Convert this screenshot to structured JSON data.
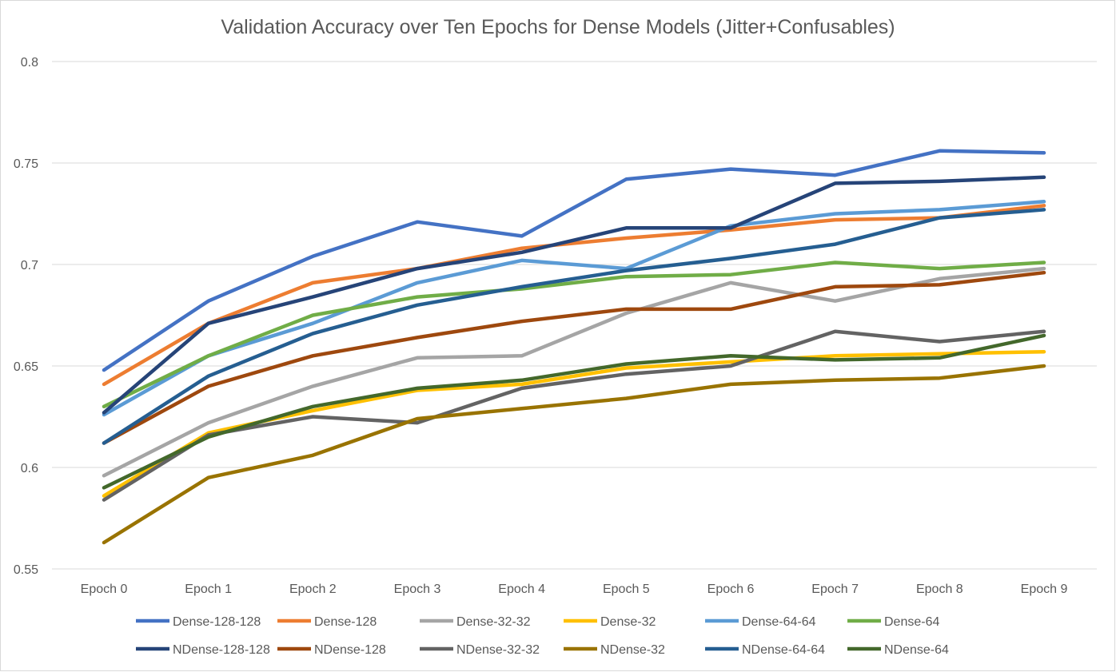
{
  "chart_data": {
    "type": "line",
    "title": "Validation Accuracy over Ten Epochs for Dense Models (Jitter+Confusables)",
    "xlabel": "",
    "ylabel": "",
    "categories": [
      "Epoch 0",
      "Epoch 1",
      "Epoch 2",
      "Epoch 3",
      "Epoch 4",
      "Epoch 5",
      "Epoch 6",
      "Epoch 7",
      "Epoch 8",
      "Epoch 9"
    ],
    "ylim": [
      0.55,
      0.8
    ],
    "yticks": [
      0.55,
      0.6,
      0.65,
      0.7,
      0.75,
      0.8
    ],
    "ytick_labels": [
      "0.55",
      "0.6",
      "0.65",
      "0.7",
      "0.75",
      "0.8"
    ],
    "grid": "horizontal",
    "legend_position": "bottom",
    "series": [
      {
        "name": "Dense-128-128",
        "color": "#4472C4",
        "values": [
          0.648,
          0.682,
          0.704,
          0.721,
          0.714,
          0.742,
          0.747,
          0.744,
          0.756,
          0.755
        ]
      },
      {
        "name": "Dense-128",
        "color": "#ED7D31",
        "values": [
          0.641,
          0.671,
          0.691,
          0.698,
          0.708,
          0.713,
          0.717,
          0.722,
          0.723,
          0.729
        ]
      },
      {
        "name": "Dense-32-32",
        "color": "#A5A5A5",
        "values": [
          0.596,
          0.622,
          0.64,
          0.654,
          0.655,
          0.676,
          0.691,
          0.682,
          0.693,
          0.698
        ]
      },
      {
        "name": "Dense-32",
        "color": "#FFC000",
        "values": [
          0.586,
          0.617,
          0.628,
          0.638,
          0.641,
          0.649,
          0.652,
          0.655,
          0.656,
          0.657
        ]
      },
      {
        "name": "Dense-64-64",
        "color": "#5B9BD5",
        "values": [
          0.626,
          0.655,
          0.671,
          0.691,
          0.702,
          0.698,
          0.719,
          0.725,
          0.727,
          0.731
        ]
      },
      {
        "name": "Dense-64",
        "color": "#70AD47",
        "values": [
          0.63,
          0.655,
          0.675,
          0.684,
          0.688,
          0.694,
          0.695,
          0.701,
          0.698,
          0.701
        ]
      },
      {
        "name": "NDense-128-128",
        "color": "#264478",
        "values": [
          0.627,
          0.671,
          0.684,
          0.698,
          0.706,
          0.718,
          0.718,
          0.74,
          0.741,
          0.743
        ]
      },
      {
        "name": "NDense-128",
        "color": "#9E480E",
        "values": [
          0.612,
          0.64,
          0.655,
          0.664,
          0.672,
          0.678,
          0.678,
          0.689,
          0.69,
          0.696
        ]
      },
      {
        "name": "NDense-32-32",
        "color": "#636363",
        "values": [
          0.584,
          0.616,
          0.625,
          0.622,
          0.639,
          0.646,
          0.65,
          0.667,
          0.662,
          0.667
        ]
      },
      {
        "name": "NDense-32",
        "color": "#997300",
        "values": [
          0.563,
          0.595,
          0.606,
          0.624,
          0.629,
          0.634,
          0.641,
          0.643,
          0.644,
          0.65
        ]
      },
      {
        "name": "NDense-64-64",
        "color": "#255E91",
        "values": [
          0.612,
          0.645,
          0.666,
          0.68,
          0.689,
          0.697,
          0.703,
          0.71,
          0.723,
          0.727
        ]
      },
      {
        "name": "NDense-64",
        "color": "#43682B",
        "values": [
          0.59,
          0.615,
          0.63,
          0.639,
          0.643,
          0.651,
          0.655,
          0.653,
          0.654,
          0.665
        ]
      }
    ]
  }
}
